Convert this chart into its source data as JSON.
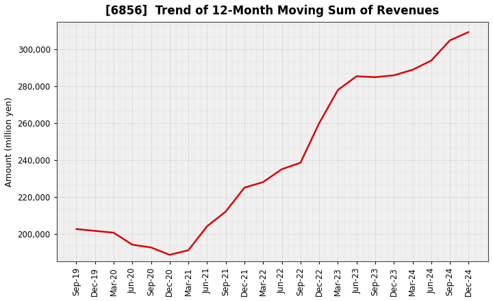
{
  "title": "[6856]  Trend of 12-Month Moving Sum of Revenues",
  "ylabel": "Amount (million yen)",
  "line_color": "#dd0000",
  "background_color": "#ffffff",
  "plot_bg_color": "#f0f0f0",
  "grid_color": "#999999",
  "x_labels": [
    "Sep-19",
    "Dec-19",
    "Mar-20",
    "Jun-20",
    "Sep-20",
    "Dec-20",
    "Mar-21",
    "Jun-21",
    "Sep-21",
    "Dec-21",
    "Mar-22",
    "Jun-22",
    "Sep-22",
    "Dec-22",
    "Mar-23",
    "Jun-23",
    "Sep-23",
    "Dec-23",
    "Mar-24",
    "Jun-24",
    "Sep-24",
    "Dec-24"
  ],
  "y_values": [
    202500,
    201500,
    200500,
    194000,
    192500,
    188500,
    191000,
    204000,
    212000,
    225000,
    228000,
    235000,
    238500,
    260000,
    278000,
    285500,
    285000,
    286000,
    289000,
    294000,
    305000,
    309500
  ],
  "ylim_min": 185000,
  "ylim_max": 315000,
  "yticks": [
    200000,
    220000,
    240000,
    260000,
    280000,
    300000
  ],
  "line_width": 1.8,
  "title_fontsize": 12,
  "label_fontsize": 9,
  "tick_fontsize": 8.5
}
